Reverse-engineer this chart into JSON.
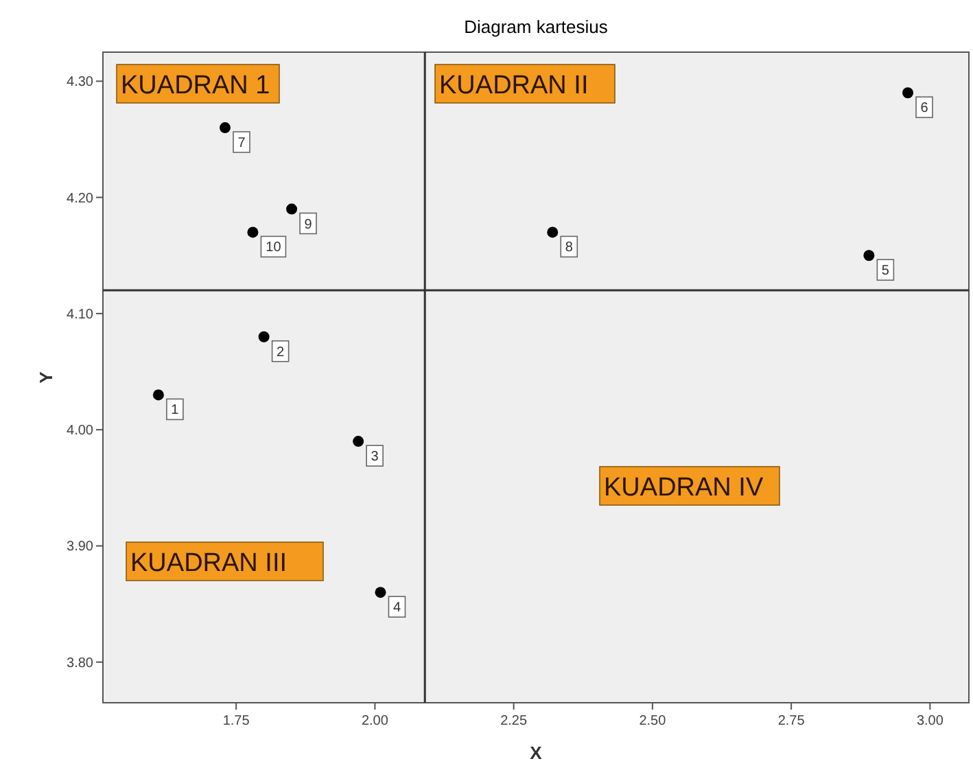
{
  "chart_data": {
    "type": "scatter",
    "title": "Diagram kartesius",
    "xlabel": "X",
    "ylabel": "Y",
    "x": [
      1.61,
      1.8,
      1.97,
      2.01,
      2.89,
      2.96,
      1.73,
      2.32,
      1.85,
      1.78
    ],
    "values": [
      4.03,
      4.08,
      3.99,
      3.86,
      4.15,
      4.29,
      4.26,
      4.17,
      4.19,
      4.17
    ],
    "color": "#000000",
    "marker": "circle",
    "xlim": [
      1.51,
      3.07
    ],
    "xticks": [
      {
        "value": 1.75,
        "label": "1.75"
      },
      {
        "value": 2,
        "label": "2.00"
      },
      {
        "value": 2.25,
        "label": "2.25"
      },
      {
        "value": 2.5,
        "label": "2.50"
      },
      {
        "value": 2.75,
        "label": "2.75"
      },
      {
        "value": 3,
        "label": "3.00"
      }
    ],
    "ylim": [
      3.765,
      4.325
    ],
    "yticks": [
      {
        "value": 3.8,
        "label": "3.80"
      },
      {
        "value": 3.9,
        "label": "3.90"
      },
      {
        "value": 4,
        "label": "4.00"
      },
      {
        "value": 4.1,
        "label": "4.10"
      },
      {
        "value": 4.2,
        "label": "4.20"
      },
      {
        "value": 4.3,
        "label": "4.30"
      }
    ],
    "ref_lines": [
      {
        "axis": "x",
        "value": 2.09,
        "color": "#333333"
      },
      {
        "axis": "y",
        "value": 4.12,
        "color": "#333333"
      }
    ],
    "annotations": [
      "KUADRAN 1",
      "KUADRAN II",
      "KUADRAN III",
      "KUADRAN IV",
      {
        "text": "1",
        "x": 1.61,
        "y": 4.03
      },
      {
        "text": "2",
        "x": 1.8,
        "y": 4.08
      },
      {
        "text": "3",
        "x": 1.97,
        "y": 3.99
      },
      {
        "text": "4",
        "x": 2.01,
        "y": 3.86
      },
      {
        "text": "5",
        "x": 2.89,
        "y": 4.15
      },
      {
        "text": "6",
        "x": 2.96,
        "y": 4.29
      },
      {
        "text": "7",
        "x": 1.73,
        "y": 4.26
      },
      {
        "text": "8",
        "x": 2.32,
        "y": 4.17
      },
      {
        "text": "9",
        "x": 1.85,
        "y": 4.19
      },
      {
        "text": "10",
        "x": 1.78,
        "y": 4.17
      }
    ],
    "grid": false
  }
}
